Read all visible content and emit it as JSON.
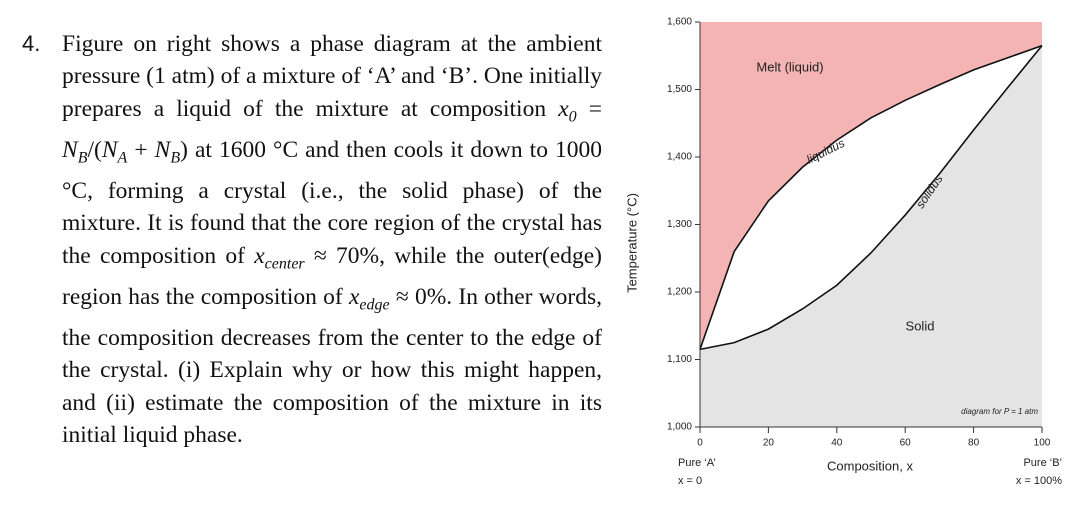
{
  "question": {
    "number": "4.",
    "body": [
      {
        "text": "Figure on right shows a phase diagram at the ambient pressure (1 atm) of a mixture of ‘A’ and ‘B’. One initially prepares a liquid of the mixture at composition "
      },
      {
        "math": [
          [
            "x",
            "0"
          ],
          " = ",
          [
            "N",
            "B"
          ],
          "/(",
          [
            "N",
            "A"
          ],
          " + ",
          [
            "N",
            "B"
          ],
          ")"
        ]
      },
      {
        "text": " at 1600 °C and then cools it down to 1000 °C, forming a crystal (i.e., the solid phase) of the mixture. It is found that the core region of the crystal has the composition of "
      },
      {
        "math": [
          [
            "x",
            "center"
          ]
        ]
      },
      {
        "text": " ≈ 70%, while the outer(edge) region has the composition of "
      },
      {
        "math": [
          [
            "x",
            "edge"
          ]
        ]
      },
      {
        "text": " ≈ 0%. In other words, the composition decreases from the center to the edge of the crystal. (i) Explain why or how this might happen, and (ii) estimate the composition of the mixture in its initial liquid phase."
      }
    ]
  },
  "chart_data": {
    "type": "phase-diagram",
    "x_label": "Composition, x",
    "y_label": "Temperature (°C)",
    "x": [
      0,
      10,
      20,
      30,
      40,
      50,
      60,
      70,
      80,
      90,
      100
    ],
    "series": [
      {
        "name": "liquidus",
        "color": "#111111",
        "values": [
          1115,
          1260,
          1335,
          1385,
          1425,
          1458,
          1484,
          1507,
          1529,
          1547,
          1565
        ]
      },
      {
        "name": "solidus",
        "color": "#111111",
        "values": [
          1115,
          1125,
          1145,
          1175,
          1210,
          1258,
          1314,
          1375,
          1440,
          1503,
          1565
        ]
      }
    ],
    "region_colors": {
      "melt": "#f4b4b4",
      "solid": "#e4e4e4"
    },
    "xlim": [
      0,
      100
    ],
    "xticks": [
      0,
      20,
      40,
      60,
      80,
      100
    ],
    "ylim": [
      1000,
      1600
    ],
    "yticks": [
      {
        "value": 1000,
        "label": "1,000"
      },
      {
        "value": 1100,
        "label": "1,100"
      },
      {
        "value": 1200,
        "label": "1,200"
      },
      {
        "value": 1300,
        "label": "1,300"
      },
      {
        "value": 1400,
        "label": "1,400"
      },
      {
        "value": 1500,
        "label": "1,500"
      },
      {
        "value": 1600,
        "label": "1,600"
      }
    ],
    "annotations": {
      "melt": "Melt (liquid)",
      "solid": "Solid",
      "pressure": "diagram for P = 1 atm",
      "left_end": "Pure ‘A’",
      "left_x": "x = 0",
      "right_end": "Pure ‘B’",
      "right_x": "x = 100%"
    }
  }
}
